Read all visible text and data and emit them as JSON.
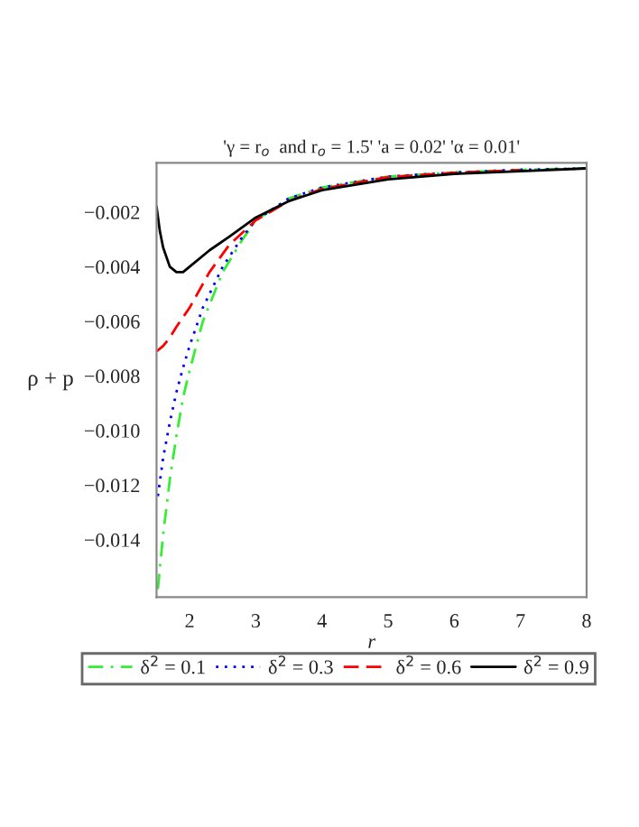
{
  "chart_data": {
    "type": "line",
    "title": "'γ = r$_{o}$  and r$_{o}$ = 1.5' 'a = 0.02' 'α = 0.01'",
    "xlabel": "r",
    "ylabel": "ρ + p",
    "xlim": [
      1.5,
      8
    ],
    "xticks": [
      2,
      3,
      4,
      5,
      6,
      7,
      8
    ],
    "ylim": [
      -0.0161,
      -0.0002
    ],
    "yticks": [
      {
        "value": -0.014,
        "label": "−0.014"
      },
      {
        "value": -0.012,
        "label": "−0.012"
      },
      {
        "value": -0.01,
        "label": "−0.010"
      },
      {
        "value": -0.008,
        "label": "−0.008"
      },
      {
        "value": -0.006,
        "label": "−0.006"
      },
      {
        "value": -0.004,
        "label": "−0.004"
      },
      {
        "value": -0.002,
        "label": "−0.002"
      }
    ],
    "grid": false,
    "legend": "bottom",
    "series": [
      {
        "name": "δ$^{2}$ = 0.1",
        "color": "#33ee33",
        "line_style": "dashdot",
        "x": [
          1.52,
          1.6,
          1.7,
          1.8,
          1.9,
          2.0,
          2.2,
          2.5,
          2.8,
          3.0,
          3.5,
          4,
          5,
          6,
          7,
          8
        ],
        "values": [
          -0.0158,
          -0.0138,
          -0.0118,
          -0.0102,
          -0.0088,
          -0.0078,
          -0.006,
          -0.0042,
          -0.003,
          -0.0023,
          -0.0015,
          -0.0011,
          -0.0007,
          -0.00055,
          -0.00045,
          -0.0004
        ]
      },
      {
        "name": "δ$^{2}$ = 0.3",
        "color": "#0000ff",
        "line_style": "dotted",
        "x": [
          1.52,
          1.6,
          1.7,
          1.8,
          1.9,
          2.0,
          2.2,
          2.5,
          2.8,
          3.0,
          3.5,
          4,
          5,
          6,
          7,
          8
        ],
        "values": [
          -0.0124,
          -0.011,
          -0.0097,
          -0.0086,
          -0.0077,
          -0.0069,
          -0.0055,
          -0.004,
          -0.0029,
          -0.0023,
          -0.0015,
          -0.0011,
          -0.0007,
          -0.00055,
          -0.00045,
          -0.0004
        ]
      },
      {
        "name": "δ$^{2}$ = 0.6",
        "color": "#ff0000",
        "line_style": "dashed",
        "x": [
          1.5,
          1.6,
          1.7,
          1.8,
          2.0,
          2.3,
          2.6,
          3.0,
          3.5,
          4,
          5,
          6,
          7
        ],
        "values": [
          -0.0071,
          -0.0069,
          -0.0066,
          -0.0062,
          -0.0055,
          -0.0042,
          -0.0032,
          -0.0023,
          -0.0016,
          -0.00115,
          -0.00072,
          -0.00056,
          -0.00046
        ]
      },
      {
        "name": "δ$^{2}$ = 0.9",
        "color": "#000000",
        "line_style": "solid",
        "x": [
          1.5,
          1.55,
          1.6,
          1.7,
          1.8,
          1.9,
          2.0,
          2.3,
          2.6,
          3.0,
          3.5,
          4,
          5,
          6,
          7,
          8
        ],
        "values": [
          -0.0018,
          -0.0027,
          -0.0033,
          -0.004,
          -0.0042,
          -0.0042,
          -0.004,
          -0.0034,
          -0.0029,
          -0.0022,
          -0.0016,
          -0.0012,
          -0.0008,
          -0.0006,
          -0.0005,
          -0.0004
        ]
      }
    ]
  }
}
